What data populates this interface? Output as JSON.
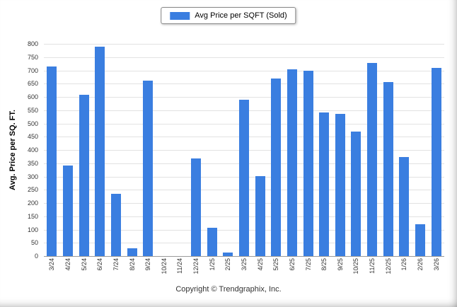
{
  "legend": {
    "label": "Avg Price per SQFT (Sold)",
    "swatch_color": "#3a7ee0"
  },
  "footer": {
    "copyright": "Copyright © Trendgraphix, Inc."
  },
  "chart_data": {
    "type": "bar",
    "title": "",
    "xlabel": "",
    "ylabel": "Avg. Price per SQ. FT.",
    "ylim": [
      0,
      800
    ],
    "ytick_step": 50,
    "grid": true,
    "legend_position": "top-center",
    "bar_color": "#3a7ee0",
    "categories": [
      "3/24",
      "4/24",
      "5/24",
      "6/24",
      "7/24",
      "8/24",
      "9/24",
      "10/24",
      "11/24",
      "12/24",
      "1/25",
      "2/25",
      "3/25",
      "4/25",
      "5/25",
      "6/25",
      "7/25",
      "8/25",
      "9/25",
      "10/25",
      "11/25",
      "12/25",
      "1/26",
      "2/26",
      "3/26"
    ],
    "series": [
      {
        "name": "Avg Price per SQFT (Sold)",
        "values": [
          715,
          340,
          607,
          790,
          235,
          30,
          660,
          0,
          0,
          368,
          107,
          12,
          590,
          300,
          668,
          705,
          698,
          542,
          537,
          470,
          728,
          655,
          372,
          120,
          710
        ]
      }
    ]
  }
}
